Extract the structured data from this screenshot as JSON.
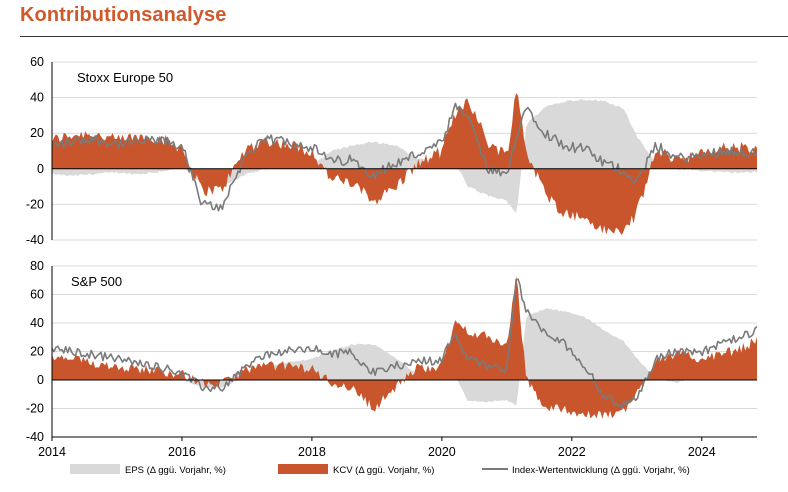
{
  "header": {
    "title": "Kontributionsanalyse"
  },
  "colors": {
    "eps": "#d9d9d9",
    "kcv": "#c8552b",
    "index": "#7a7a7a",
    "title": "#d0582a",
    "grid": "#d9d9d9"
  },
  "chart_data": {
    "type": "area",
    "x_years": [
      "2014",
      "2016",
      "2018",
      "2020",
      "2022",
      "2024"
    ],
    "x_range": [
      2014.0,
      2024.85
    ],
    "legend": {
      "eps": "EPS (Δ ggü. Vorjahr, %)",
      "kcv": "KCV (Δ ggü. Vorjahr, %)",
      "index": "Index-Wertentwicklung (Δ ggü. Vorjahr, %)"
    },
    "panels": [
      {
        "name": "Stoxx Europe 50",
        "ylim": [
          -40,
          60
        ],
        "yticks": [
          -40,
          -20,
          0,
          20,
          40,
          60
        ],
        "x": [
          2014.0,
          2014.3,
          2014.6,
          2015.0,
          2015.3,
          2015.6,
          2016.0,
          2016.3,
          2016.6,
          2017.0,
          2017.3,
          2017.6,
          2018.0,
          2018.3,
          2018.6,
          2018.95,
          2019.3,
          2019.6,
          2020.0,
          2020.2,
          2020.4,
          2020.7,
          2021.0,
          2021.15,
          2021.3,
          2021.6,
          2021.9,
          2022.2,
          2022.5,
          2022.8,
          2023.0,
          2023.3,
          2023.6,
          2024.0,
          2024.3,
          2024.6,
          2024.85
        ],
        "eps": [
          -3,
          -4,
          -3,
          -2,
          -3,
          -2,
          1,
          -8,
          -10,
          -3,
          0,
          2,
          2,
          10,
          13,
          15,
          13,
          6,
          4,
          4,
          -10,
          -15,
          -18,
          -25,
          25,
          35,
          38,
          39,
          38,
          34,
          18,
          3,
          0,
          -1,
          -2,
          -2,
          -2
        ],
        "kcv": [
          16,
          19,
          20,
          16,
          18,
          18,
          12,
          -12,
          -12,
          12,
          16,
          14,
          10,
          -6,
          -8,
          -18,
          -10,
          2,
          10,
          30,
          40,
          15,
          8,
          45,
          10,
          -15,
          -25,
          -28,
          -35,
          -35,
          -25,
          10,
          6,
          8,
          12,
          12,
          10
        ],
        "index": [
          13,
          15,
          17,
          14,
          15,
          16,
          13,
          -20,
          -22,
          9,
          16,
          16,
          12,
          4,
          5,
          -3,
          3,
          8,
          14,
          34,
          30,
          0,
          -5,
          20,
          35,
          20,
          13,
          11,
          3,
          -1,
          -7,
          13,
          6,
          7,
          10,
          10,
          8
        ]
      },
      {
        "name": "S&P 500",
        "ylim": [
          -40,
          80
        ],
        "yticks": [
          -40,
          -20,
          0,
          20,
          40,
          60,
          80
        ],
        "x": [
          2014.0,
          2014.3,
          2014.6,
          2015.0,
          2015.3,
          2015.6,
          2016.0,
          2016.3,
          2016.6,
          2017.0,
          2017.3,
          2017.6,
          2018.0,
          2018.3,
          2018.6,
          2018.95,
          2019.3,
          2019.6,
          2020.0,
          2020.2,
          2020.4,
          2020.7,
          2021.0,
          2021.15,
          2021.3,
          2021.6,
          2021.9,
          2022.2,
          2022.5,
          2022.8,
          2023.0,
          2023.3,
          2023.6,
          2024.0,
          2024.3,
          2024.6,
          2024.85
        ],
        "eps": [
          8,
          6,
          6,
          5,
          4,
          2,
          0,
          -5,
          -5,
          2,
          10,
          12,
          15,
          20,
          25,
          25,
          15,
          5,
          3,
          3,
          -15,
          -15,
          -14,
          -18,
          45,
          50,
          48,
          44,
          35,
          27,
          15,
          1,
          -2,
          4,
          6,
          8,
          10
        ],
        "kcv": [
          15,
          15,
          12,
          10,
          8,
          7,
          4,
          -2,
          -3,
          8,
          10,
          10,
          8,
          -2,
          -5,
          -20,
          -5,
          8,
          10,
          40,
          35,
          30,
          25,
          72,
          0,
          -20,
          -20,
          -25,
          -25,
          -22,
          -10,
          15,
          18,
          15,
          18,
          22,
          28
        ],
        "index": [
          22,
          20,
          18,
          15,
          12,
          10,
          5,
          -5,
          -6,
          10,
          18,
          20,
          22,
          18,
          20,
          5,
          10,
          13,
          14,
          34,
          15,
          10,
          8,
          73,
          48,
          32,
          25,
          10,
          -12,
          -18,
          -12,
          15,
          20,
          20,
          25,
          30,
          35
        ]
      }
    ]
  }
}
